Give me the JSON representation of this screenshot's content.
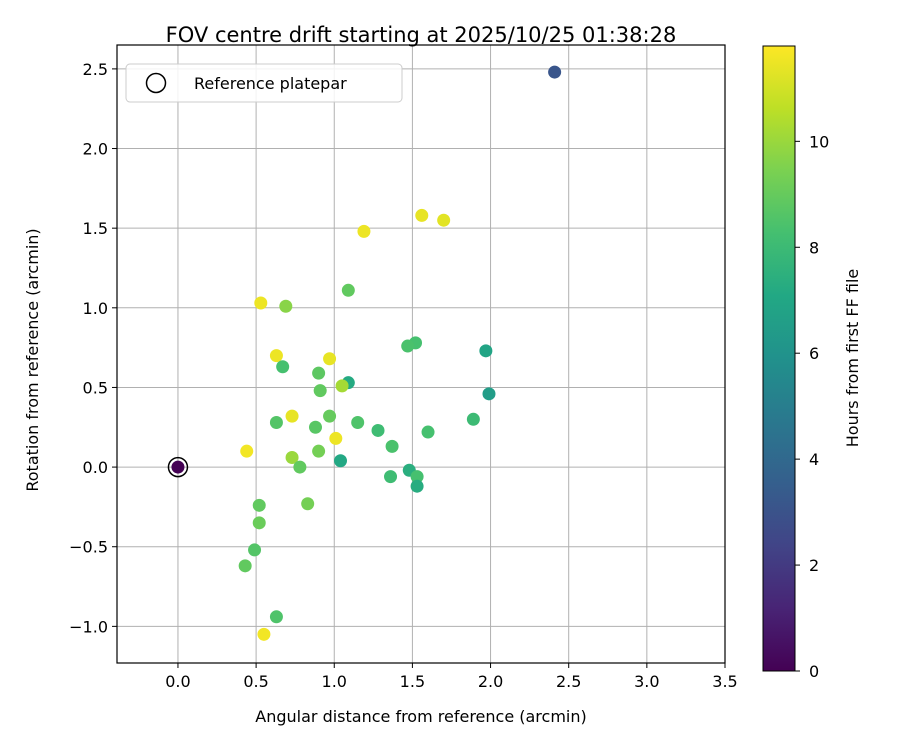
{
  "chart_data": {
    "type": "scatter",
    "title": "FOV centre drift starting at 2025/10/25 01:38:28",
    "xlabel": "Angular distance from reference (arcmin)",
    "ylabel": "Rotation from reference (arcmin)",
    "xlim": [
      -0.39,
      3.5
    ],
    "ylim": [
      -1.23,
      2.65
    ],
    "xticks": [
      0.0,
      0.5,
      1.0,
      1.5,
      2.0,
      2.5,
      3.0,
      3.5
    ],
    "xtick_labels": [
      "0.0",
      "0.5",
      "1.0",
      "1.5",
      "2.0",
      "2.5",
      "3.0",
      "3.5"
    ],
    "yticks": [
      -1.0,
      -0.5,
      0.0,
      0.5,
      1.0,
      1.5,
      2.0,
      2.5
    ],
    "ytick_labels": [
      "−1.0",
      "−0.5",
      "0.0",
      "0.5",
      "1.0",
      "1.5",
      "2.0",
      "2.5"
    ],
    "grid": true,
    "legend": {
      "position": "top-left",
      "entries": [
        "Reference platepar"
      ]
    },
    "reference_point": {
      "x": 0.0,
      "y": 0.0,
      "hours": 0.0
    },
    "points": [
      {
        "x": 2.41,
        "y": 2.48,
        "hours": 3.1
      },
      {
        "x": 1.56,
        "y": 1.58,
        "hours": 11.4
      },
      {
        "x": 1.7,
        "y": 1.55,
        "hours": 11.3
      },
      {
        "x": 1.19,
        "y": 1.48,
        "hours": 11.5
      },
      {
        "x": 1.09,
        "y": 1.11,
        "hours": 8.9
      },
      {
        "x": 0.53,
        "y": 1.03,
        "hours": 11.5
      },
      {
        "x": 0.69,
        "y": 1.01,
        "hours": 9.7
      },
      {
        "x": 1.52,
        "y": 0.78,
        "hours": 8.3
      },
      {
        "x": 1.47,
        "y": 0.76,
        "hours": 8.4
      },
      {
        "x": 1.97,
        "y": 0.73,
        "hours": 6.9
      },
      {
        "x": 0.63,
        "y": 0.7,
        "hours": 11.5
      },
      {
        "x": 0.97,
        "y": 0.68,
        "hours": 11.4
      },
      {
        "x": 0.67,
        "y": 0.63,
        "hours": 8.3
      },
      {
        "x": 0.9,
        "y": 0.59,
        "hours": 8.8
      },
      {
        "x": 1.09,
        "y": 0.53,
        "hours": 7.2
      },
      {
        "x": 1.05,
        "y": 0.51,
        "hours": 10.2
      },
      {
        "x": 0.91,
        "y": 0.48,
        "hours": 8.9
      },
      {
        "x": 1.99,
        "y": 0.46,
        "hours": 6.5
      },
      {
        "x": 0.97,
        "y": 0.32,
        "hours": 9.0
      },
      {
        "x": 0.73,
        "y": 0.32,
        "hours": 11.4
      },
      {
        "x": 1.89,
        "y": 0.3,
        "hours": 8.0
      },
      {
        "x": 1.15,
        "y": 0.28,
        "hours": 8.5
      },
      {
        "x": 0.63,
        "y": 0.28,
        "hours": 8.6
      },
      {
        "x": 0.88,
        "y": 0.25,
        "hours": 8.7
      },
      {
        "x": 1.28,
        "y": 0.23,
        "hours": 8.1
      },
      {
        "x": 1.6,
        "y": 0.22,
        "hours": 8.3
      },
      {
        "x": 1.01,
        "y": 0.18,
        "hours": 11.5
      },
      {
        "x": 1.37,
        "y": 0.13,
        "hours": 8.4
      },
      {
        "x": 0.44,
        "y": 0.1,
        "hours": 11.6
      },
      {
        "x": 0.9,
        "y": 0.1,
        "hours": 9.3
      },
      {
        "x": 0.73,
        "y": 0.06,
        "hours": 10.0
      },
      {
        "x": 1.04,
        "y": 0.04,
        "hours": 7.1
      },
      {
        "x": 0.78,
        "y": 0.0,
        "hours": 8.9
      },
      {
        "x": 1.48,
        "y": -0.02,
        "hours": 7.4
      },
      {
        "x": 1.36,
        "y": -0.06,
        "hours": 8.1
      },
      {
        "x": 1.53,
        "y": -0.06,
        "hours": 8.3
      },
      {
        "x": 1.53,
        "y": -0.12,
        "hours": 7.3
      },
      {
        "x": 0.83,
        "y": -0.23,
        "hours": 9.3
      },
      {
        "x": 0.52,
        "y": -0.24,
        "hours": 8.9
      },
      {
        "x": 0.52,
        "y": -0.35,
        "hours": 9.1
      },
      {
        "x": 0.49,
        "y": -0.52,
        "hours": 8.6
      },
      {
        "x": 0.43,
        "y": -0.62,
        "hours": 8.9
      },
      {
        "x": 0.63,
        "y": -0.94,
        "hours": 8.5
      },
      {
        "x": 0.55,
        "y": -1.05,
        "hours": 11.6
      }
    ],
    "colorbar": {
      "label": "Hours from first FF file",
      "colormap": "viridis",
      "range": [
        0,
        11.8
      ],
      "ticks": [
        0,
        2,
        4,
        6,
        8,
        10
      ],
      "tick_labels": [
        "0",
        "2",
        "4",
        "6",
        "8",
        "10"
      ]
    }
  }
}
